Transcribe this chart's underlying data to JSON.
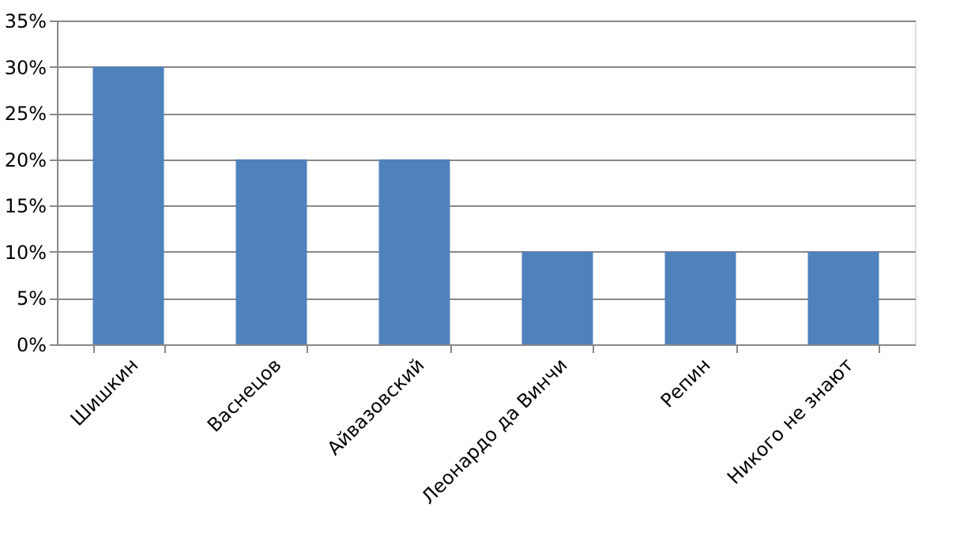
{
  "chart_data": {
    "type": "bar",
    "categories": [
      "Шишкин",
      "Васнецов",
      "Айвазовский",
      "Леонардо да Винчи",
      "Репин",
      "Никого не знают"
    ],
    "values": [
      30,
      20,
      20,
      10,
      10,
      10
    ],
    "color": "#4f81bd",
    "ylim": [
      0,
      35
    ],
    "yticks": [
      {
        "value": 0,
        "label": "0%"
      },
      {
        "value": 5,
        "label": "5%"
      },
      {
        "value": 10,
        "label": "10%"
      },
      {
        "value": 15,
        "label": "15%"
      },
      {
        "value": 20,
        "label": "20%"
      },
      {
        "value": 25,
        "label": "25%"
      },
      {
        "value": 30,
        "label": "30%"
      },
      {
        "value": 35,
        "label": "35%"
      }
    ],
    "grid": "y"
  }
}
